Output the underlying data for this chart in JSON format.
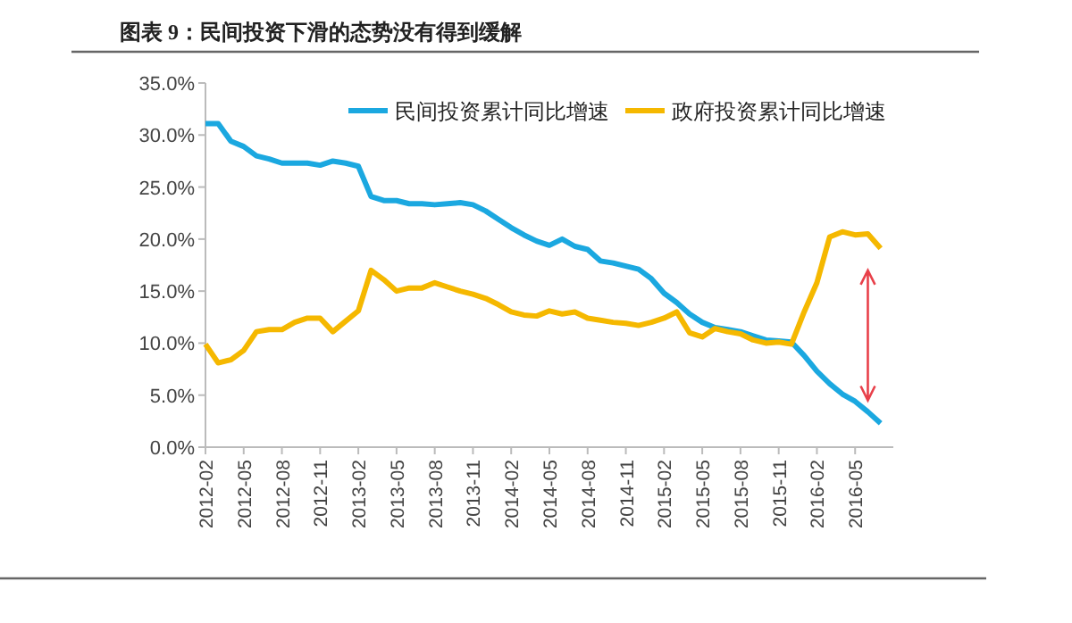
{
  "chart_data": {
    "type": "line",
    "title": "图表 9：民间投资下滑的态势没有得到缓解",
    "categories": [
      "2012-02",
      null,
      null,
      "2012-05",
      null,
      null,
      "2012-08",
      null,
      null,
      "2012-11",
      null,
      null,
      "2013-02",
      null,
      null,
      "2013-05",
      null,
      null,
      "2013-08",
      null,
      null,
      "2013-11",
      null,
      null,
      "2014-02",
      null,
      null,
      "2014-05",
      null,
      null,
      "2014-08",
      null,
      null,
      "2014-11",
      null,
      null,
      "2015-02",
      null,
      null,
      "2015-05",
      null,
      null,
      "2015-08",
      null,
      null,
      "2015-11",
      null,
      null,
      "2016-02",
      null,
      null,
      "2016-05",
      null,
      null
    ],
    "series": [
      {
        "name": "民间投资累计同比增速",
        "color": "#1ba8e0",
        "values": [
          31.1,
          31.1,
          29.4,
          28.9,
          28.0,
          27.7,
          27.3,
          27.3,
          27.3,
          27.1,
          27.5,
          27.3,
          27.0,
          24.1,
          23.7,
          23.7,
          23.4,
          23.4,
          23.3,
          23.4,
          23.5,
          23.3,
          22.7,
          21.9,
          21.1,
          20.4,
          19.8,
          19.4,
          20.0,
          19.3,
          19.0,
          17.9,
          17.7,
          17.4,
          17.1,
          16.2,
          14.8,
          13.9,
          12.8,
          12.0,
          11.5,
          11.3,
          11.1,
          10.7,
          10.3,
          10.2,
          10.1,
          8.8,
          7.3,
          6.1,
          5.1,
          4.4,
          3.4,
          2.3
        ]
      },
      {
        "name": "政府投资累计同比增速",
        "color": "#f5b800",
        "values": [
          9.9,
          8.1,
          8.4,
          9.3,
          11.1,
          11.3,
          11.3,
          12.0,
          12.4,
          12.4,
          11.1,
          12.1,
          13.1,
          17.0,
          16.1,
          15.0,
          15.3,
          15.3,
          15.8,
          15.4,
          15.0,
          14.7,
          14.3,
          13.7,
          13.0,
          12.7,
          12.6,
          13.1,
          12.8,
          13.0,
          12.4,
          12.2,
          12.0,
          11.9,
          11.7,
          12.0,
          12.4,
          13.0,
          11.0,
          10.6,
          11.4,
          11.1,
          10.9,
          10.3,
          10.0,
          10.1,
          9.9,
          13.0,
          15.8,
          20.2,
          20.7,
          20.4,
          20.5,
          19.1
        ]
      }
    ],
    "ylim": [
      0,
      35
    ],
    "yticks": [
      {
        "value": 0,
        "label": "0.0%"
      },
      {
        "value": 5,
        "label": "5.0%"
      },
      {
        "value": 10,
        "label": "10.0%"
      },
      {
        "value": 15,
        "label": "15.0%"
      },
      {
        "value": 20,
        "label": "20.0%"
      },
      {
        "value": 25,
        "label": "25.0%"
      },
      {
        "value": 30,
        "label": "30.0%"
      },
      {
        "value": 35,
        "label": "35.0%"
      }
    ],
    "legend": "top",
    "grid": false
  }
}
